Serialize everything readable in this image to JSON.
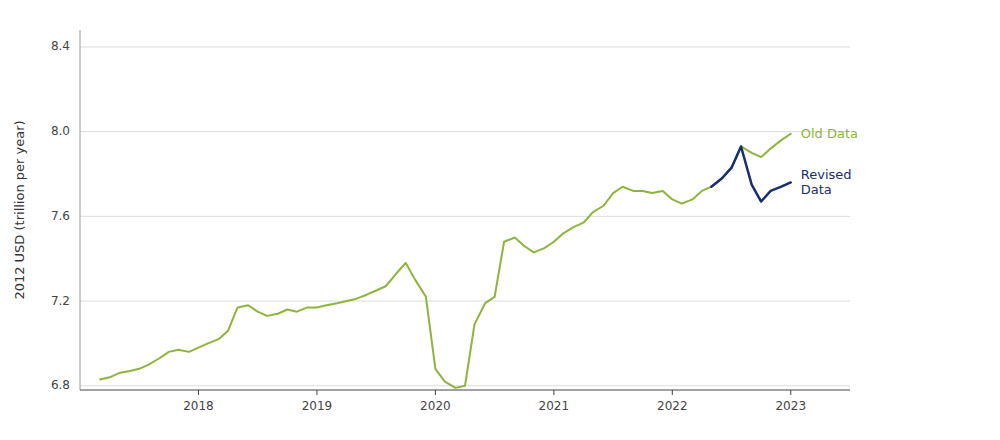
{
  "chart_data": {
    "type": "line",
    "y_label": "2012 USD (trillion per year)",
    "xlim": [
      2017.0,
      2023.5
    ],
    "xticks": [
      2018,
      2019,
      2020,
      2021,
      2022,
      2023
    ],
    "ylim": [
      6.78,
      8.48
    ],
    "yticks": [
      6.8,
      7.2,
      7.6,
      {
        "value": 8.0,
        "label": "8.0"
      },
      8.4
    ],
    "grid": true,
    "series": [
      {
        "name": "Old Data",
        "color": "#8db53c",
        "x": [
          2017.17,
          2017.25,
          2017.33,
          2017.42,
          2017.5,
          2017.58,
          2017.67,
          2017.75,
          2017.83,
          2017.92,
          2018.0,
          2018.08,
          2018.17,
          2018.25,
          2018.33,
          2018.42,
          2018.5,
          2018.58,
          2018.67,
          2018.75,
          2018.83,
          2018.92,
          2019.0,
          2019.08,
          2019.17,
          2019.25,
          2019.33,
          2019.42,
          2019.5,
          2019.58,
          2019.67,
          2019.75,
          2019.83,
          2019.92,
          2020.0,
          2020.08,
          2020.17,
          2020.25,
          2020.33,
          2020.42,
          2020.5,
          2020.58,
          2020.67,
          2020.75,
          2020.83,
          2020.92,
          2021.0,
          2021.08,
          2021.17,
          2021.25,
          2021.33,
          2021.42,
          2021.5,
          2021.58,
          2021.67,
          2021.75,
          2021.83,
          2021.92,
          2022.0,
          2022.08,
          2022.17,
          2022.25,
          2022.33,
          2022.42,
          2022.5,
          2022.58,
          2022.67,
          2022.75,
          2022.83,
          2022.92,
          2023.0
        ],
        "values": [
          6.83,
          6.84,
          6.86,
          6.87,
          6.88,
          6.9,
          6.93,
          6.96,
          6.97,
          6.96,
          6.98,
          7.0,
          7.02,
          7.06,
          7.17,
          7.18,
          7.15,
          7.13,
          7.14,
          7.16,
          7.15,
          7.17,
          7.17,
          7.18,
          7.19,
          7.2,
          7.21,
          7.23,
          7.25,
          7.27,
          7.33,
          7.38,
          7.3,
          7.22,
          6.88,
          6.82,
          6.79,
          6.8,
          7.09,
          7.19,
          7.22,
          7.48,
          7.5,
          7.46,
          7.43,
          7.45,
          7.48,
          7.52,
          7.55,
          7.57,
          7.62,
          7.65,
          7.71,
          7.74,
          7.72,
          7.72,
          7.71,
          7.72,
          7.68,
          7.66,
          7.68,
          7.72,
          7.74,
          7.78,
          7.83,
          7.93,
          7.9,
          7.88,
          7.92,
          7.96,
          7.99
        ]
      },
      {
        "name": "Revised\nData",
        "color": "#1a2e6e",
        "x": [
          2022.33,
          2022.42,
          2022.5,
          2022.58,
          2022.67,
          2022.75,
          2022.83,
          2022.92,
          2023.0
        ],
        "values": [
          7.74,
          7.78,
          7.83,
          7.93,
          7.75,
          7.67,
          7.72,
          7.74,
          7.76
        ]
      }
    ]
  }
}
